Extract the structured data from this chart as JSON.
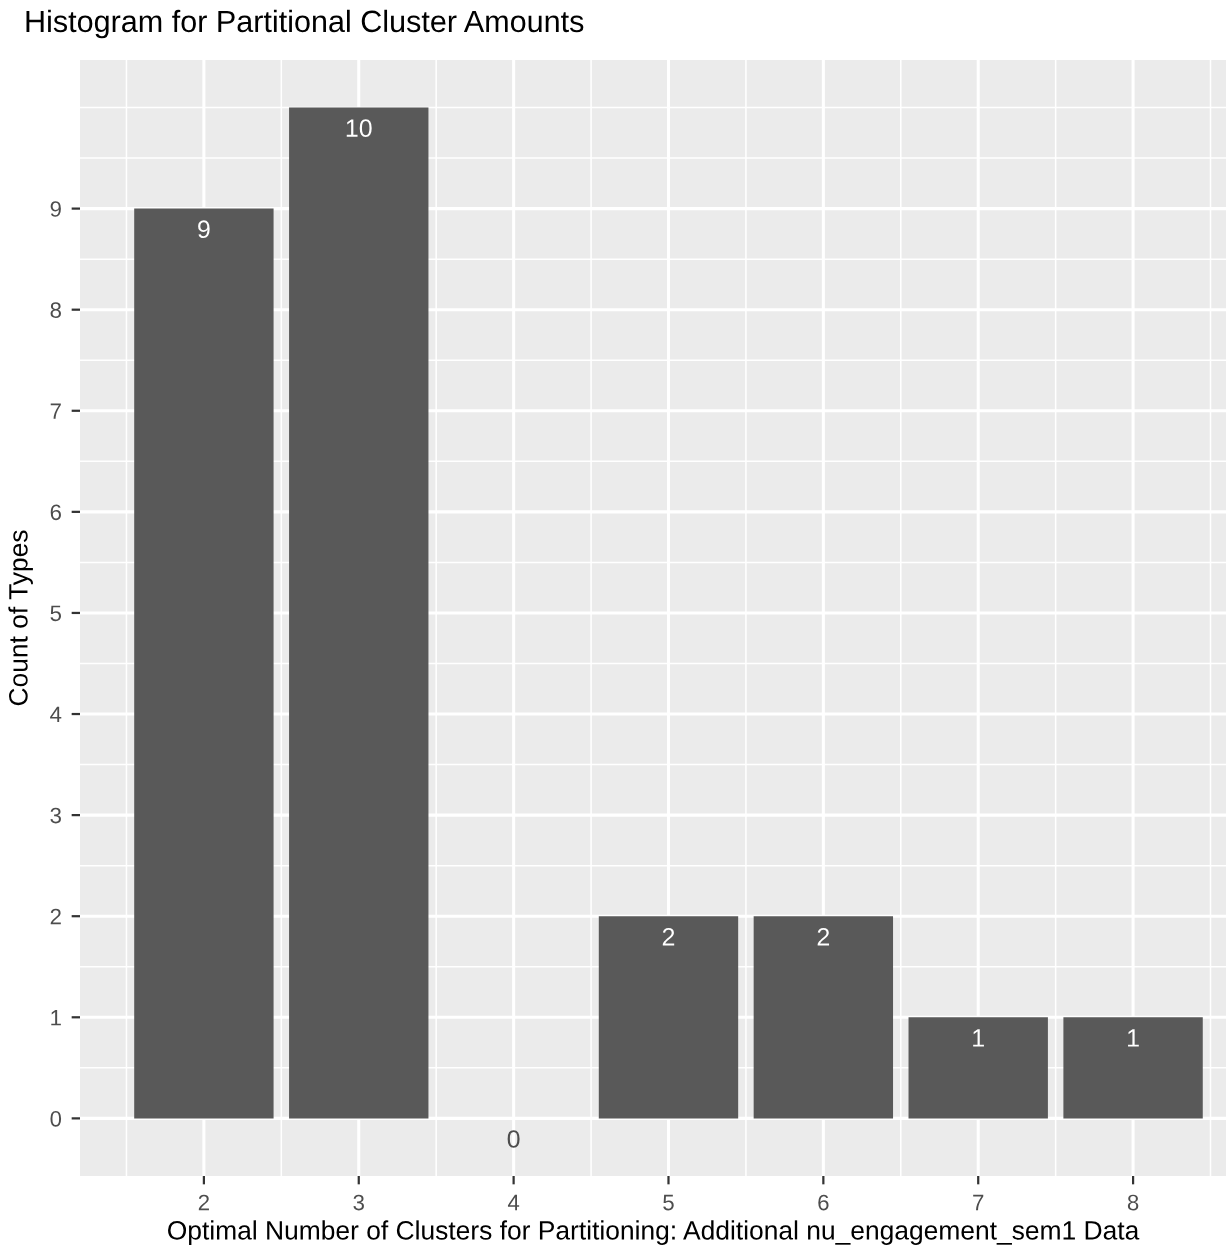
{
  "chart_data": {
    "type": "bar",
    "title": "Histogram for Partitional Cluster Amounts",
    "xlabel": "Optimal Number of Clusters for Partitioning: Additional nu_engagement_sem1 Data",
    "ylabel": "Count of Types",
    "x": [
      2,
      3,
      4,
      5,
      6,
      7,
      8
    ],
    "values": [
      9,
      10,
      0,
      2,
      2,
      1,
      1
    ],
    "color": "#595959",
    "data_labels": true,
    "xlim": [
      1.2,
      8.6
    ],
    "xticks": [
      2,
      3,
      4,
      5,
      6,
      7,
      8
    ],
    "ylim": [
      -0.57,
      10.47
    ],
    "yticks": [
      0,
      1,
      2,
      3,
      4,
      5,
      6,
      7,
      8,
      9
    ],
    "grid": true,
    "legend": false
  }
}
